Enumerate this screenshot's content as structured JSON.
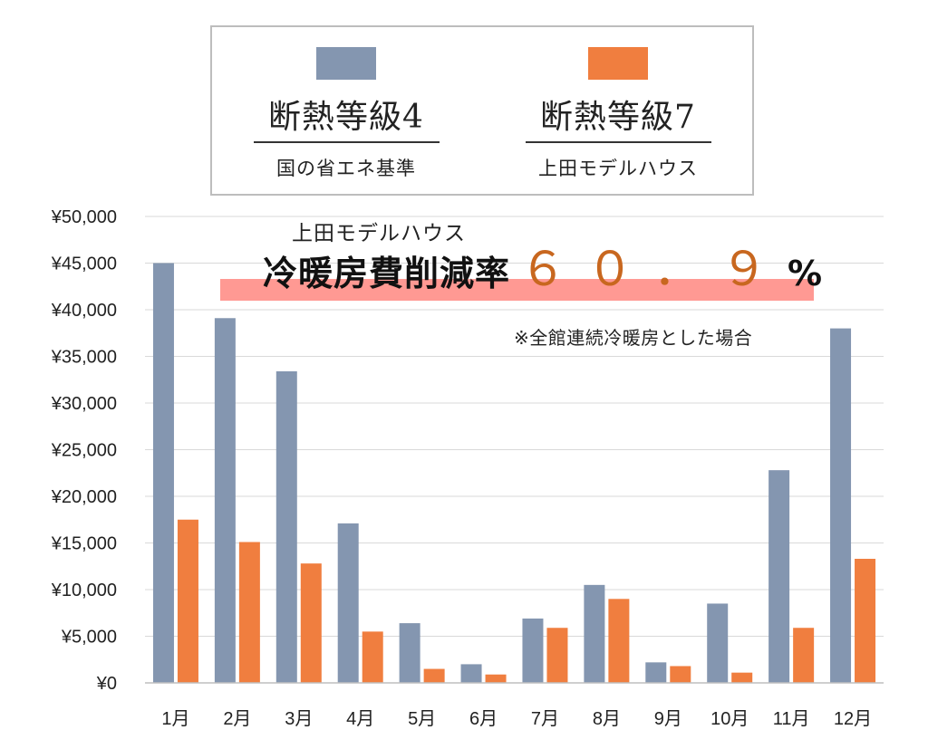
{
  "legend": {
    "items": [
      {
        "title": "断熱等級4",
        "subtitle": "国の省エネ基準",
        "color": "#8496b0"
      },
      {
        "title": "断熱等級7",
        "subtitle": "上田モデルハウス",
        "color": "#f07e3f"
      }
    ]
  },
  "annotation": {
    "subtitle": "上田モデルハウス",
    "label": "冷暖房費削減率",
    "number": "６０．９",
    "unit": "%",
    "note": "※全館連続冷暖房とした場合",
    "band_color": "#ff9993",
    "number_color": "#c8671f"
  },
  "chart_data": {
    "type": "bar",
    "categories": [
      "1月",
      "2月",
      "3月",
      "4月",
      "5月",
      "6月",
      "7月",
      "8月",
      "9月",
      "10月",
      "11月",
      "12月"
    ],
    "series": [
      {
        "name": "断熱等級4 国の省エネ基準",
        "color": "#8496b0",
        "values": [
          45000,
          39100,
          33400,
          17100,
          6400,
          2000,
          6900,
          10500,
          2200,
          8500,
          22800,
          38000
        ]
      },
      {
        "name": "断熱等級7 上田モデルハウス",
        "color": "#f07e3f",
        "values": [
          17500,
          15100,
          12800,
          5500,
          1500,
          900,
          5900,
          9000,
          1800,
          1100,
          5900,
          13300
        ]
      }
    ],
    "yticks": [
      "¥0",
      "¥5,000",
      "¥10,000",
      "¥15,000",
      "¥20,000",
      "¥25,000",
      "¥30,000",
      "¥35,000",
      "¥40,000",
      "¥45,000",
      "¥50,000"
    ],
    "ylim": [
      0,
      50000
    ],
    "grid": true,
    "legend_position": "top"
  }
}
